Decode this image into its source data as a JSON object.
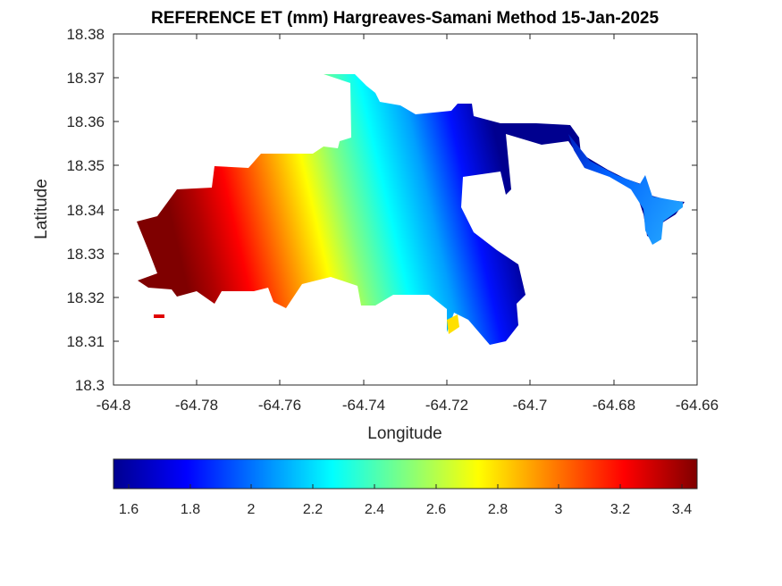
{
  "chart_data": {
    "type": "heatmap",
    "title": "REFERENCE ET (mm) Hargreaves-Samani Method  15-Jan-2025",
    "xlabel": "Longitude",
    "ylabel": "Latitude",
    "xlim": [
      -64.8,
      -64.66
    ],
    "ylim": [
      18.3,
      18.38
    ],
    "x_ticks": [
      "-64.8",
      "-64.78",
      "-64.76",
      "-64.74",
      "-64.72",
      "-64.7",
      "-64.68",
      "-64.66"
    ],
    "y_ticks": [
      "18.3",
      "18.31",
      "18.32",
      "18.33",
      "18.34",
      "18.35",
      "18.36",
      "18.37",
      "18.38"
    ],
    "colormap": "jet",
    "colorbar": {
      "range": [
        1.55,
        3.45
      ],
      "ticks": [
        "1.6",
        "1.8",
        "2",
        "2.2",
        "2.4",
        "2.6",
        "2.8",
        "3",
        "3.2",
        "3.4"
      ],
      "placement": "bottom"
    },
    "gradient_description": "ET decreases from about 3.4 mm in the west to about 1.6 mm in the north-east",
    "max_value_region": {
      "lon": -64.785,
      "lat": 18.334,
      "value": 3.4
    },
    "min_value_region": {
      "lon": -64.71,
      "lat": 18.352,
      "value": 1.6
    }
  }
}
